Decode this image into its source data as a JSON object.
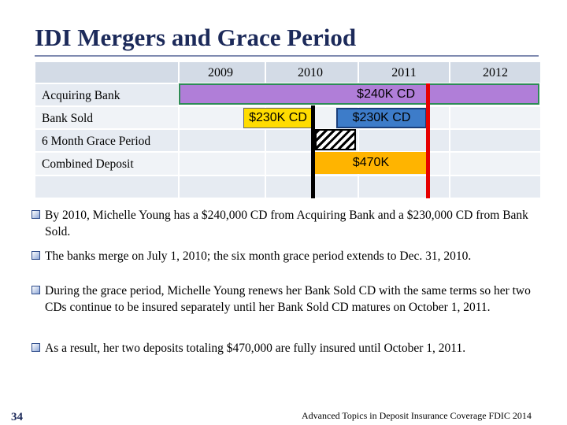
{
  "title": "IDI Mergers and Grace Period",
  "timeline": {
    "years": [
      "2009",
      "2010",
      "2011",
      "2012"
    ],
    "rows": [
      "Acquiring Bank",
      "Bank Sold",
      "6 Month Grace Period",
      "Combined Deposit"
    ],
    "bars": {
      "acquiring": "$240K CD",
      "sold_first": "$230K CD",
      "sold_renewed": "$230K CD",
      "combined": "$470K"
    },
    "colors": {
      "acquiring": "#b07ed8",
      "sold_first": "#ffdc00",
      "sold_renewed": "#3d7cc9",
      "combined": "#ffb400",
      "merger_line": "#000000",
      "maturity_line": "#e60000"
    }
  },
  "bullets": [
    "By 2010, Michelle Young has a $240,000 CD from Acquiring Bank and a $230,000 CD from Bank Sold.",
    "The banks merge on July 1, 2010; the six month grace period extends to Dec. 31, 2010.",
    "During the grace period, Michelle Young renews her Bank Sold CD with the same terms so her two CDs continue to be insured separately until her Bank Sold CD matures on October 1, 2011.",
    "As a result, her two deposits totaling $470,000 are fully insured until October 1, 2011."
  ],
  "footer": {
    "page_number": "34",
    "credit": "Advanced Topics in Deposit Insurance Coverage FDIC 2014"
  }
}
